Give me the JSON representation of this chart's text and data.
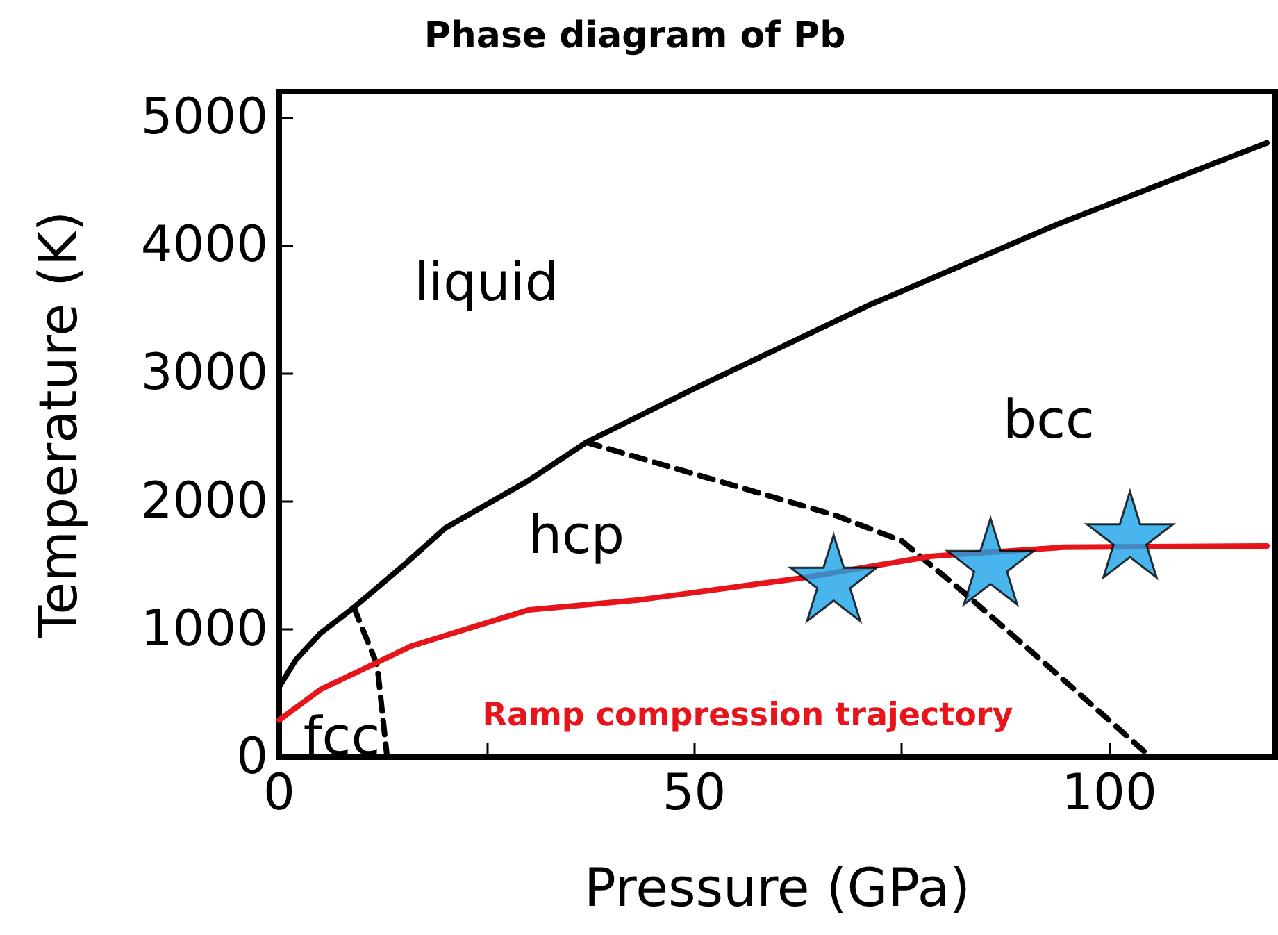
{
  "chart_data": {
    "type": "line",
    "title": "Phase diagram of Pb",
    "xlabel": "Pressure (GPa)",
    "ylabel": "Temperature (K)",
    "xlim": [
      0,
      120
    ],
    "ylim": [
      0,
      5200
    ],
    "xticks": [
      0,
      {
        "value": 25,
        "label": null
      },
      50,
      {
        "value": 75,
        "label": null
      },
      100
    ],
    "yticks": [
      0,
      1000,
      2000,
      3000,
      4000,
      5000
    ],
    "grid": false,
    "legend": false,
    "series": [
      {
        "color": "#000000",
        "line_style": "solid",
        "marker": "none",
        "x": [
          0,
          2,
          5,
          9,
          15,
          20,
          30,
          37,
          50,
          71,
          94,
          119
        ],
        "values": [
          550,
          760,
          970,
          1170,
          1500,
          1790,
          2160,
          2460,
          2880,
          3530,
          4170,
          4800
        ]
      },
      {
        "color": "#000000",
        "line_style": "dashed",
        "marker": "none",
        "x": [
          37,
          67,
          75,
          82.6,
          94.4,
          105
        ],
        "values": [
          2460,
          1890,
          1690,
          1280,
          610,
          0
        ]
      },
      {
        "color": "#000000",
        "line_style": "dashed",
        "marker": "none",
        "x": [
          9,
          11.8,
          13
        ],
        "values": [
          1170,
          720,
          0
        ]
      },
      {
        "name": "Ramp compression trajectory",
        "color": "#e8141c",
        "line_style": "solid",
        "marker": "none",
        "x": [
          0,
          5,
          16,
          30,
          43.5,
          63,
          78.6,
          94.4,
          119
        ],
        "values": [
          290,
          530,
          870,
          1150,
          1230,
          1400,
          1570,
          1640,
          1650
        ]
      },
      {
        "type": "scatter",
        "color": "#1aa3e8",
        "marker": "star",
        "x": [
          66.8,
          85.7,
          102.5
        ],
        "values": [
          1400,
          1530,
          1740
        ]
      }
    ],
    "annotations": [
      "liquid",
      "bcc",
      "hcp",
      "fcc"
    ]
  }
}
